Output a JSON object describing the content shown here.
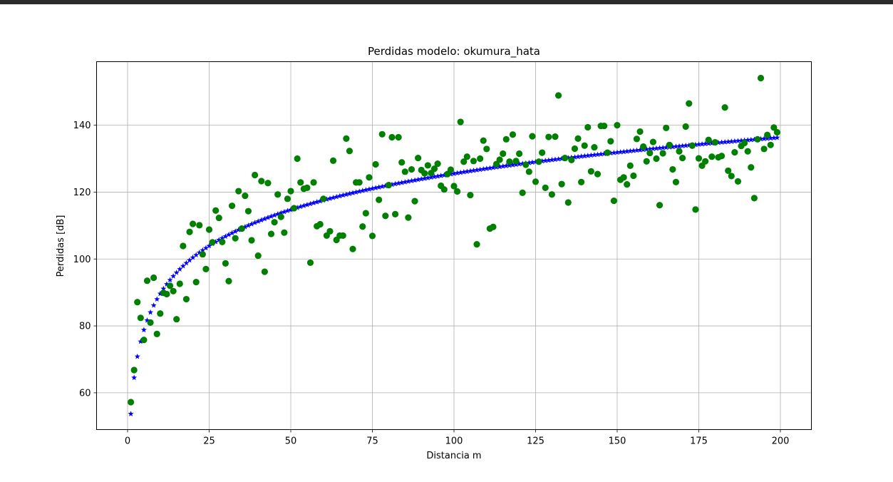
{
  "colors": {
    "window_bar": "#2b2b2b",
    "grid": "#b0b0b0",
    "model_series": "#0000ff",
    "measured_series": "#008000"
  },
  "chart_data": {
    "type": "scatter",
    "title": "Perdidas modelo: okumura_hata",
    "xlabel": "Distancia m",
    "ylabel": "Perdidas [dB]",
    "xlim": [
      -9.5,
      209.5
    ],
    "ylim": [
      49,
      159
    ],
    "xticks": [
      0,
      25,
      50,
      75,
      100,
      125,
      150,
      175,
      200
    ],
    "yticks": [
      60,
      80,
      100,
      120,
      140
    ],
    "grid": true,
    "legend": "none",
    "series": [
      {
        "marker": "star",
        "color": "#0000ff",
        "model": {
          "x_start": 1,
          "x_end": 199,
          "step": 1,
          "a": 53.7,
          "b": 15.6
        }
      },
      {
        "marker": "circle",
        "color": "#008000",
        "points": [
          [
            1,
            57.2
          ],
          [
            2,
            66.8
          ],
          [
            3,
            87.1
          ],
          [
            4,
            82.4
          ],
          [
            5,
            75.8
          ],
          [
            6,
            93.5
          ],
          [
            7,
            81.0
          ],
          [
            8,
            94.4
          ],
          [
            9,
            77.6
          ],
          [
            10,
            83.7
          ],
          [
            11,
            89.9
          ],
          [
            12,
            89.5
          ],
          [
            13,
            92.0
          ],
          [
            14,
            90.4
          ],
          [
            15,
            82.0
          ],
          [
            16,
            92.6
          ],
          [
            17,
            103.9
          ],
          [
            18,
            88.0
          ],
          [
            19,
            108.1
          ],
          [
            20,
            110.5
          ],
          [
            21,
            93.1
          ],
          [
            22,
            110.1
          ],
          [
            23,
            101.4
          ],
          [
            24,
            97.0
          ],
          [
            25,
            108.8
          ],
          [
            26,
            105.0
          ],
          [
            27,
            114.5
          ],
          [
            28,
            112.3
          ],
          [
            29,
            105.1
          ],
          [
            30,
            98.7
          ],
          [
            31,
            93.4
          ],
          [
            32,
            115.9
          ],
          [
            33,
            106.2
          ],
          [
            34,
            120.3
          ],
          [
            35,
            109.1
          ],
          [
            36,
            118.9
          ],
          [
            37,
            114.3
          ],
          [
            38,
            105.6
          ],
          [
            39,
            125.1
          ],
          [
            40,
            101.0
          ],
          [
            41,
            123.3
          ],
          [
            42,
            96.2
          ],
          [
            43,
            122.7
          ],
          [
            44,
            107.5
          ],
          [
            45,
            111.0
          ],
          [
            46,
            119.3
          ],
          [
            47,
            112.6
          ],
          [
            48,
            107.9
          ],
          [
            49,
            118.0
          ],
          [
            50,
            120.3
          ],
          [
            51,
            115.2
          ],
          [
            52,
            130.0
          ],
          [
            53,
            122.9
          ],
          [
            54,
            121.0
          ],
          [
            55,
            121.3
          ],
          [
            56,
            98.9
          ],
          [
            57,
            122.9
          ],
          [
            58,
            109.8
          ],
          [
            59,
            110.4
          ],
          [
            60,
            118.0
          ],
          [
            61,
            107.0
          ],
          [
            62,
            108.3
          ],
          [
            63,
            129.4
          ],
          [
            64,
            105.7
          ],
          [
            65,
            107.0
          ],
          [
            66,
            107.0
          ],
          [
            67,
            136.0
          ],
          [
            68,
            132.3
          ],
          [
            69,
            103.0
          ],
          [
            70,
            122.9
          ],
          [
            71,
            122.9
          ],
          [
            72,
            109.7
          ],
          [
            73,
            113.7
          ],
          [
            74,
            124.4
          ],
          [
            75,
            106.9
          ],
          [
            76,
            128.3
          ],
          [
            77,
            117.7
          ],
          [
            78,
            137.3
          ],
          [
            79,
            112.9
          ],
          [
            80,
            122.1
          ],
          [
            81,
            136.4
          ],
          [
            82,
            113.4
          ],
          [
            83,
            136.4
          ],
          [
            84,
            128.9
          ],
          [
            85,
            126.1
          ],
          [
            86,
            112.4
          ],
          [
            87,
            126.8
          ],
          [
            88,
            117.3
          ],
          [
            89,
            130.2
          ],
          [
            90,
            126.6
          ],
          [
            91,
            125.6
          ],
          [
            92,
            128.0
          ],
          [
            93,
            125.7
          ],
          [
            94,
            127.0
          ],
          [
            95,
            128.5
          ],
          [
            96,
            121.9
          ],
          [
            97,
            120.8
          ],
          [
            98,
            125.4
          ],
          [
            99,
            126.7
          ],
          [
            100,
            121.8
          ],
          [
            101,
            120.2
          ],
          [
            102,
            141.0
          ],
          [
            103,
            129.1
          ],
          [
            104,
            130.6
          ],
          [
            105,
            119.1
          ],
          [
            106,
            129.3
          ],
          [
            107,
            104.4
          ],
          [
            108,
            130.0
          ],
          [
            109,
            135.4
          ],
          [
            110,
            132.9
          ],
          [
            111,
            109.1
          ],
          [
            112,
            109.6
          ],
          [
            113,
            128.4
          ],
          [
            114,
            129.7
          ],
          [
            115,
            131.5
          ],
          [
            116,
            135.8
          ],
          [
            117,
            129.1
          ],
          [
            118,
            137.2
          ],
          [
            119,
            129.3
          ],
          [
            120,
            131.5
          ],
          [
            121,
            119.8
          ],
          [
            122,
            128.2
          ],
          [
            123,
            126.1
          ],
          [
            124,
            136.7
          ],
          [
            125,
            123.1
          ],
          [
            126,
            129.1
          ],
          [
            127,
            131.8
          ],
          [
            128,
            121.3
          ],
          [
            129,
            136.5
          ],
          [
            130,
            119.3
          ],
          [
            131,
            136.6
          ],
          [
            132,
            148.9
          ],
          [
            133,
            122.4
          ],
          [
            134,
            130.2
          ],
          [
            135,
            116.9
          ],
          [
            136,
            129.6
          ],
          [
            137,
            133.0
          ],
          [
            138,
            136.0
          ],
          [
            139,
            123.0
          ],
          [
            140,
            133.9
          ],
          [
            141,
            139.4
          ],
          [
            142,
            126.2
          ],
          [
            143,
            133.4
          ],
          [
            144,
            125.4
          ],
          [
            145,
            139.8
          ],
          [
            146,
            139.8
          ],
          [
            147,
            131.8
          ],
          [
            148,
            135.2
          ],
          [
            149,
            117.4
          ],
          [
            150,
            140.0
          ],
          [
            151,
            123.7
          ],
          [
            152,
            124.4
          ],
          [
            153,
            122.3
          ],
          [
            154,
            127.9
          ],
          [
            155,
            124.9
          ],
          [
            156,
            135.9
          ],
          [
            157,
            138.1
          ],
          [
            158,
            133.6
          ],
          [
            159,
            129.2
          ],
          [
            160,
            131.7
          ],
          [
            161,
            135.0
          ],
          [
            162,
            130.0
          ],
          [
            163,
            116.1
          ],
          [
            164,
            131.6
          ],
          [
            165,
            139.2
          ],
          [
            166,
            134.1
          ],
          [
            167,
            126.8
          ],
          [
            168,
            123.0
          ],
          [
            169,
            132.2
          ],
          [
            170,
            130.2
          ],
          [
            171,
            139.6
          ],
          [
            172,
            146.5
          ],
          [
            173,
            133.9
          ],
          [
            174,
            114.8
          ],
          [
            175,
            130.1
          ],
          [
            176,
            127.9
          ],
          [
            177,
            129.2
          ],
          [
            178,
            135.6
          ],
          [
            179,
            130.6
          ],
          [
            180,
            134.9
          ],
          [
            181,
            130.4
          ],
          [
            182,
            130.8
          ],
          [
            183,
            145.3
          ],
          [
            184,
            126.4
          ],
          [
            185,
            124.8
          ],
          [
            186,
            131.9
          ],
          [
            187,
            123.2
          ],
          [
            188,
            133.8
          ],
          [
            189,
            134.7
          ],
          [
            190,
            132.2
          ],
          [
            191,
            127.4
          ],
          [
            192,
            118.2
          ],
          [
            193,
            135.8
          ],
          [
            194,
            154.1
          ],
          [
            195,
            132.9
          ],
          [
            196,
            137.1
          ],
          [
            197,
            134.1
          ],
          [
            198,
            139.3
          ],
          [
            199,
            137.9
          ]
        ]
      }
    ]
  }
}
